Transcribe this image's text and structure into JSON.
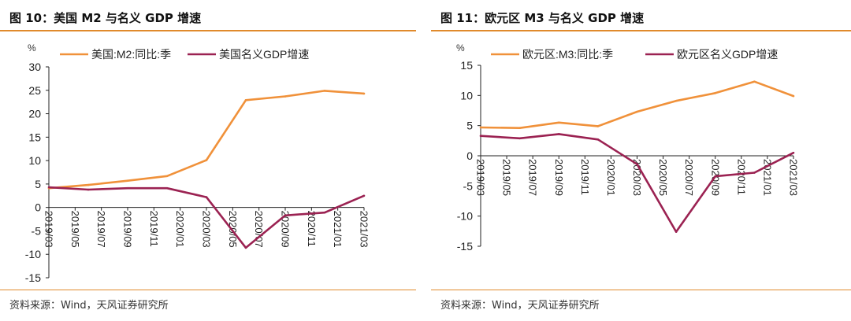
{
  "panels": [
    {
      "title": "图 10：美国 M2 与名义 GDP 增速",
      "source": "资料来源：Wind，天风证券研究所"
    },
    {
      "title": "图 11：欧元区 M3 与名义 GDP 增速",
      "source": "资料来源：Wind，天风证券研究所"
    }
  ],
  "chart_data": [
    {
      "type": "line",
      "unit": "%",
      "categories": [
        "2019/03",
        "2019/05",
        "2019/07",
        "2019/09",
        "2019/11",
        "2020/01",
        "2020/03",
        "2020/05",
        "2020/07",
        "2020/09",
        "2020/11",
        "2021/01",
        "2021/03"
      ],
      "x_tick_labels": [
        "2019/03",
        "2019/05",
        "2019/07",
        "2019/09",
        "2019/11",
        "2020/01",
        "2020/03",
        "2020/05",
        "2020/07",
        "2020/09",
        "2020/11",
        "2021/01",
        "2021/03"
      ],
      "y_ticks": [
        -15,
        -10,
        -5,
        0,
        5,
        10,
        15,
        20,
        25,
        30
      ],
      "ylim": [
        -15,
        30
      ],
      "legend_position": "top",
      "series": [
        {
          "name": "美国:M2:同比:季",
          "color": "#f0913a",
          "x": [
            0,
            1.5,
            3,
            4.5,
            6,
            7.5,
            9,
            10.5,
            12
          ],
          "values": [
            4.1,
            4.8,
            5.7,
            6.7,
            10.1,
            22.9,
            23.7,
            24.9,
            24.3
          ]
        },
        {
          "name": "美国名义GDP增速",
          "color": "#9b2252",
          "x": [
            0,
            1.5,
            3,
            4.5,
            6,
            7.5,
            9,
            10.5,
            12
          ],
          "values": [
            4.3,
            3.8,
            4.1,
            4.1,
            2.2,
            -8.6,
            -1.7,
            -1.1,
            2.5
          ]
        }
      ]
    },
    {
      "type": "line",
      "unit": "%",
      "categories": [
        "2019/03",
        "2019/05",
        "2019/07",
        "2019/09",
        "2019/11",
        "2020/01",
        "2020/03",
        "2020/05",
        "2020/07",
        "2020/09",
        "2020/11",
        "2021/01",
        "2021/03"
      ],
      "x_tick_labels": [
        "2019/03",
        "2019/05",
        "2019/07",
        "2019/09",
        "2019/11",
        "2020/01",
        "2020/03",
        "2020/05",
        "2020/07",
        "2020/09",
        "2020/11",
        "2021/01",
        "2021/03"
      ],
      "y_ticks": [
        -15,
        -10,
        -5,
        0,
        5,
        10,
        15
      ],
      "ylim": [
        -15,
        15
      ],
      "legend_position": "top",
      "series": [
        {
          "name": "欧元区:M3:同比:季",
          "color": "#f0913a",
          "x": [
            0,
            1.5,
            3,
            4.5,
            6,
            7.5,
            9,
            10.5,
            12
          ],
          "values": [
            4.7,
            4.6,
            5.5,
            4.9,
            7.3,
            9.1,
            10.4,
            12.3,
            9.9
          ]
        },
        {
          "name": "欧元区名义GDP增速",
          "color": "#9b2252",
          "x": [
            0,
            1.5,
            3,
            4.5,
            6,
            7.5,
            9,
            10.5,
            12
          ],
          "values": [
            3.3,
            2.9,
            3.6,
            2.7,
            -1.4,
            -12.6,
            -3.4,
            -2.8,
            0.5
          ]
        }
      ]
    }
  ]
}
